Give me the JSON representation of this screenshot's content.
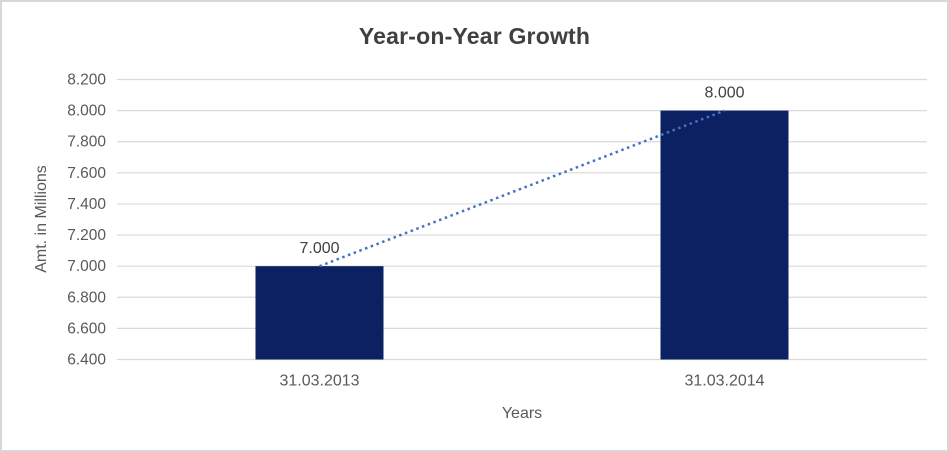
{
  "chart_data": {
    "type": "bar",
    "title": "Year-on-Year Growth",
    "xlabel": "Years",
    "ylabel": "Amt. in Millions",
    "categories": [
      "31.03.2013",
      "31.03.2014"
    ],
    "values": [
      7.0,
      8.0
    ],
    "data_labels": [
      "7.000",
      "8.000"
    ],
    "ylim": [
      6.4,
      8.2
    ],
    "ytick_step": 0.2,
    "ytick_labels": [
      "8.200",
      "8.000",
      "7.800",
      "7.600",
      "7.400",
      "7.200",
      "7.000",
      "6.800",
      "6.600",
      "6.400"
    ],
    "grid": true,
    "legend": "none",
    "colors": {
      "bar": "#0b2161",
      "trendline": "#4472c4",
      "gridline": "#d9d9d9",
      "title": "#404040",
      "axis_label": "#595959",
      "data_label": "#404040",
      "frame_border": "#d7d7d7"
    },
    "trendline": {
      "style": "dotted",
      "from_label": "7.000",
      "to_label": "8.000"
    }
  }
}
